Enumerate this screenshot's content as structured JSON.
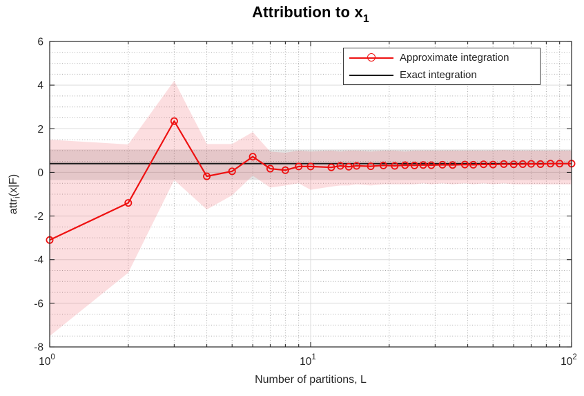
{
  "figure": {
    "title_text": "Attribution to x",
    "title_subscript": "1",
    "ylabel_prefix": "attr",
    "ylabel_subscript": "i",
    "ylabel_suffix": "(x|F)"
  },
  "chart_data": {
    "type": "line",
    "title": "Attribution to x_1",
    "xlabel": "Number of partitions, L",
    "ylabel": "attr_i(x|F)",
    "x_scale": "log",
    "xlim": [
      1,
      100
    ],
    "ylim": [
      -8,
      6
    ],
    "x_ticks": [
      {
        "value": 1,
        "base": "10",
        "exp": "0"
      },
      {
        "value": 10,
        "base": "10",
        "exp": "1"
      },
      {
        "value": 100,
        "base": "10",
        "exp": "2"
      }
    ],
    "x_minor_ticks": [
      2,
      3,
      4,
      5,
      6,
      7,
      8,
      9,
      20,
      30,
      40,
      50,
      60,
      70,
      80,
      90
    ],
    "y_ticks": [
      -8,
      -6,
      -4,
      -2,
      0,
      2,
      4,
      6
    ],
    "y_minor_step": 0.5,
    "grid": true,
    "legend": {
      "position": "top-right",
      "entries": [
        {
          "label": "Approximate integration",
          "color": "#ee1111",
          "marker": "circle"
        },
        {
          "label": "Exact integration",
          "color": "#1a1a1a",
          "marker": "none"
        }
      ]
    },
    "series": [
      {
        "name": "Approximate integration",
        "type": "line+marker",
        "color": "#ee1111",
        "x": [
          1,
          2,
          3,
          4,
          5,
          6,
          7,
          8,
          9,
          10,
          12,
          13,
          14,
          15,
          17,
          19,
          21,
          23,
          25,
          27,
          29,
          32,
          35,
          39,
          42,
          46,
          50,
          55,
          60,
          65,
          70,
          76,
          83,
          90,
          100
        ],
        "y": [
          -3.1,
          -1.4,
          2.35,
          -0.18,
          0.05,
          0.72,
          0.17,
          0.1,
          0.27,
          0.27,
          0.23,
          0.3,
          0.26,
          0.3,
          0.28,
          0.32,
          0.3,
          0.33,
          0.32,
          0.34,
          0.33,
          0.35,
          0.34,
          0.36,
          0.35,
          0.37,
          0.36,
          0.38,
          0.37,
          0.38,
          0.39,
          0.38,
          0.4,
          0.4,
          0.4
        ],
        "band": {
          "lower": [
            -7.5,
            -4.6,
            -0.35,
            -1.7,
            -1.05,
            -0.15,
            -0.7,
            -0.6,
            -0.5,
            -0.8,
            -0.65,
            -0.6,
            -0.6,
            -0.55,
            -0.6,
            -0.55,
            -0.55,
            -0.55,
            -0.55,
            -0.5,
            -0.55,
            -0.5,
            -0.55,
            -0.5,
            -0.55,
            -0.5,
            -0.55,
            -0.5,
            -0.55,
            -0.55,
            -0.55,
            -0.55,
            -0.55,
            -0.55,
            -0.55
          ],
          "upper": [
            1.5,
            1.28,
            4.2,
            1.3,
            1.3,
            1.85,
            0.95,
            0.9,
            1.0,
            0.95,
            1.0,
            0.95,
            1.0,
            1.0,
            0.95,
            1.0,
            1.0,
            0.95,
            1.0,
            1.0,
            1.0,
            1.0,
            1.0,
            1.0,
            1.0,
            1.0,
            1.0,
            1.02,
            1.0,
            1.0,
            1.0,
            1.0,
            1.0,
            1.0,
            1.0
          ],
          "fill": "#ef4653",
          "opacity": 0.18
        }
      },
      {
        "name": "Exact integration",
        "type": "hline",
        "color": "#1a1a1a",
        "value": 0.4,
        "band": {
          "lower": -0.35,
          "upper": 1.05,
          "fill": "#808080",
          "opacity": 0.22
        }
      }
    ],
    "colors": {
      "axis": "#262626",
      "major_grid": "#dcdcdc",
      "minor_grid": "#aaaaaa",
      "background": "#ffffff"
    }
  }
}
